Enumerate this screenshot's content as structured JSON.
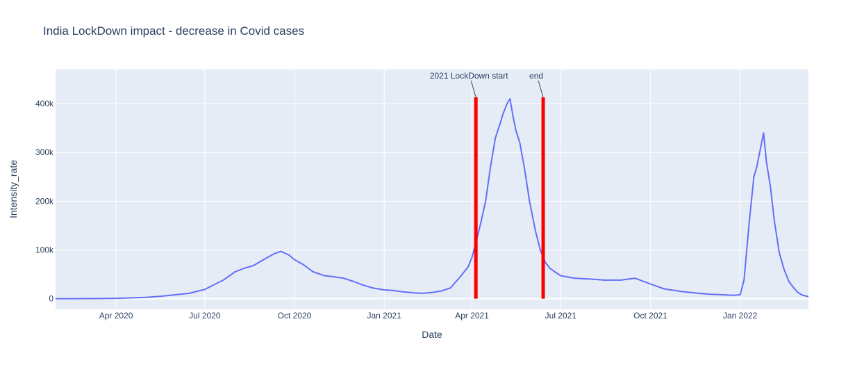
{
  "chart_data": {
    "type": "line",
    "title": "India LockDown impact - decrease in Covid cases",
    "xlabel": "Date",
    "ylabel": "Intensity_rate",
    "x_ticks": [
      {
        "date": "2020-04-01",
        "label": "Apr 2020"
      },
      {
        "date": "2020-07-01",
        "label": "Jul 2020"
      },
      {
        "date": "2020-10-01",
        "label": "Oct 2020"
      },
      {
        "date": "2021-01-01",
        "label": "Jan 2021"
      },
      {
        "date": "2021-04-01",
        "label": "Apr 2021"
      },
      {
        "date": "2021-07-01",
        "label": "Jul 2021"
      },
      {
        "date": "2021-10-01",
        "label": "Oct 2021"
      },
      {
        "date": "2022-01-01",
        "label": "Jan 2022"
      }
    ],
    "y_ticks": [
      {
        "value": 0,
        "label": "0"
      },
      {
        "value": 100000,
        "label": "100k"
      },
      {
        "value": 200000,
        "label": "200k"
      },
      {
        "value": 300000,
        "label": "300k"
      },
      {
        "value": 400000,
        "label": "400k"
      }
    ],
    "xlim": [
      "2020-01-30",
      "2022-03-12"
    ],
    "ylim": [
      -22000,
      470000
    ],
    "grid": true,
    "line_color": "#636efa",
    "series": [
      {
        "x": [
          "2020-01-30",
          "2020-02-15",
          "2020-03-01",
          "2020-03-15",
          "2020-04-01",
          "2020-04-15",
          "2020-05-01",
          "2020-05-15",
          "2020-06-01",
          "2020-06-15",
          "2020-07-01",
          "2020-07-10",
          "2020-07-20",
          "2020-08-01",
          "2020-08-10",
          "2020-08-20",
          "2020-09-01",
          "2020-09-10",
          "2020-09-17",
          "2020-09-25",
          "2020-10-01",
          "2020-10-10",
          "2020-10-20",
          "2020-11-01",
          "2020-11-10",
          "2020-11-20",
          "2020-12-01",
          "2020-12-10",
          "2020-12-20",
          "2021-01-01",
          "2021-01-10",
          "2021-01-20",
          "2021-02-01",
          "2021-02-10",
          "2021-02-20",
          "2021-03-01",
          "2021-03-10",
          "2021-03-20",
          "2021-03-28",
          "2021-04-01",
          "2021-04-05",
          "2021-04-10",
          "2021-04-15",
          "2021-04-20",
          "2021-04-25",
          "2021-04-30",
          "2021-05-03",
          "2021-05-07",
          "2021-05-10",
          "2021-05-13",
          "2021-05-16",
          "2021-05-20",
          "2021-05-25",
          "2021-05-30",
          "2021-06-05",
          "2021-06-10",
          "2021-06-15",
          "2021-06-20",
          "2021-06-25",
          "2021-07-01",
          "2021-07-15",
          "2021-08-01",
          "2021-08-15",
          "2021-09-01",
          "2021-09-15",
          "2021-10-01",
          "2021-10-15",
          "2021-11-01",
          "2021-11-15",
          "2021-12-01",
          "2021-12-15",
          "2021-12-25",
          "2022-01-01",
          "2022-01-05",
          "2022-01-10",
          "2022-01-15",
          "2022-01-18",
          "2022-01-21",
          "2022-01-25",
          "2022-01-28",
          "2022-02-01",
          "2022-02-05",
          "2022-02-10",
          "2022-02-15",
          "2022-02-20",
          "2022-02-25",
          "2022-03-01",
          "2022-03-05",
          "2022-03-12"
        ],
        "y": [
          0,
          0,
          100,
          200,
          700,
          1500,
          2500,
          4500,
          8000,
          11000,
          19000,
          28000,
          38000,
          55000,
          62000,
          68000,
          82000,
          92000,
          97000,
          90000,
          80000,
          70000,
          55000,
          47000,
          45000,
          42000,
          35000,
          28000,
          22000,
          18000,
          17000,
          14000,
          12000,
          11000,
          13000,
          16000,
          22000,
          45000,
          65000,
          85000,
          115000,
          155000,
          200000,
          270000,
          330000,
          360000,
          380000,
          400000,
          410000,
          375000,
          345000,
          320000,
          265000,
          200000,
          140000,
          100000,
          75000,
          62000,
          55000,
          47000,
          42000,
          40000,
          38000,
          38000,
          42000,
          30000,
          20000,
          15000,
          12000,
          9000,
          8000,
          7000,
          8000,
          38000,
          150000,
          250000,
          270000,
          300000,
          340000,
          280000,
          230000,
          160000,
          95000,
          60000,
          35000,
          22000,
          13000,
          8000,
          4000
        ]
      }
    ],
    "annotations": [
      {
        "date": "2021-04-05",
        "value": 413000,
        "text": "2021 LockDown start"
      },
      {
        "date": "2021-06-13",
        "value": 413000,
        "text": "end"
      }
    ],
    "reference_lines": [
      {
        "date": "2021-04-05",
        "color": "#ff0000"
      },
      {
        "date": "2021-06-13",
        "color": "#ff0000"
      }
    ]
  }
}
